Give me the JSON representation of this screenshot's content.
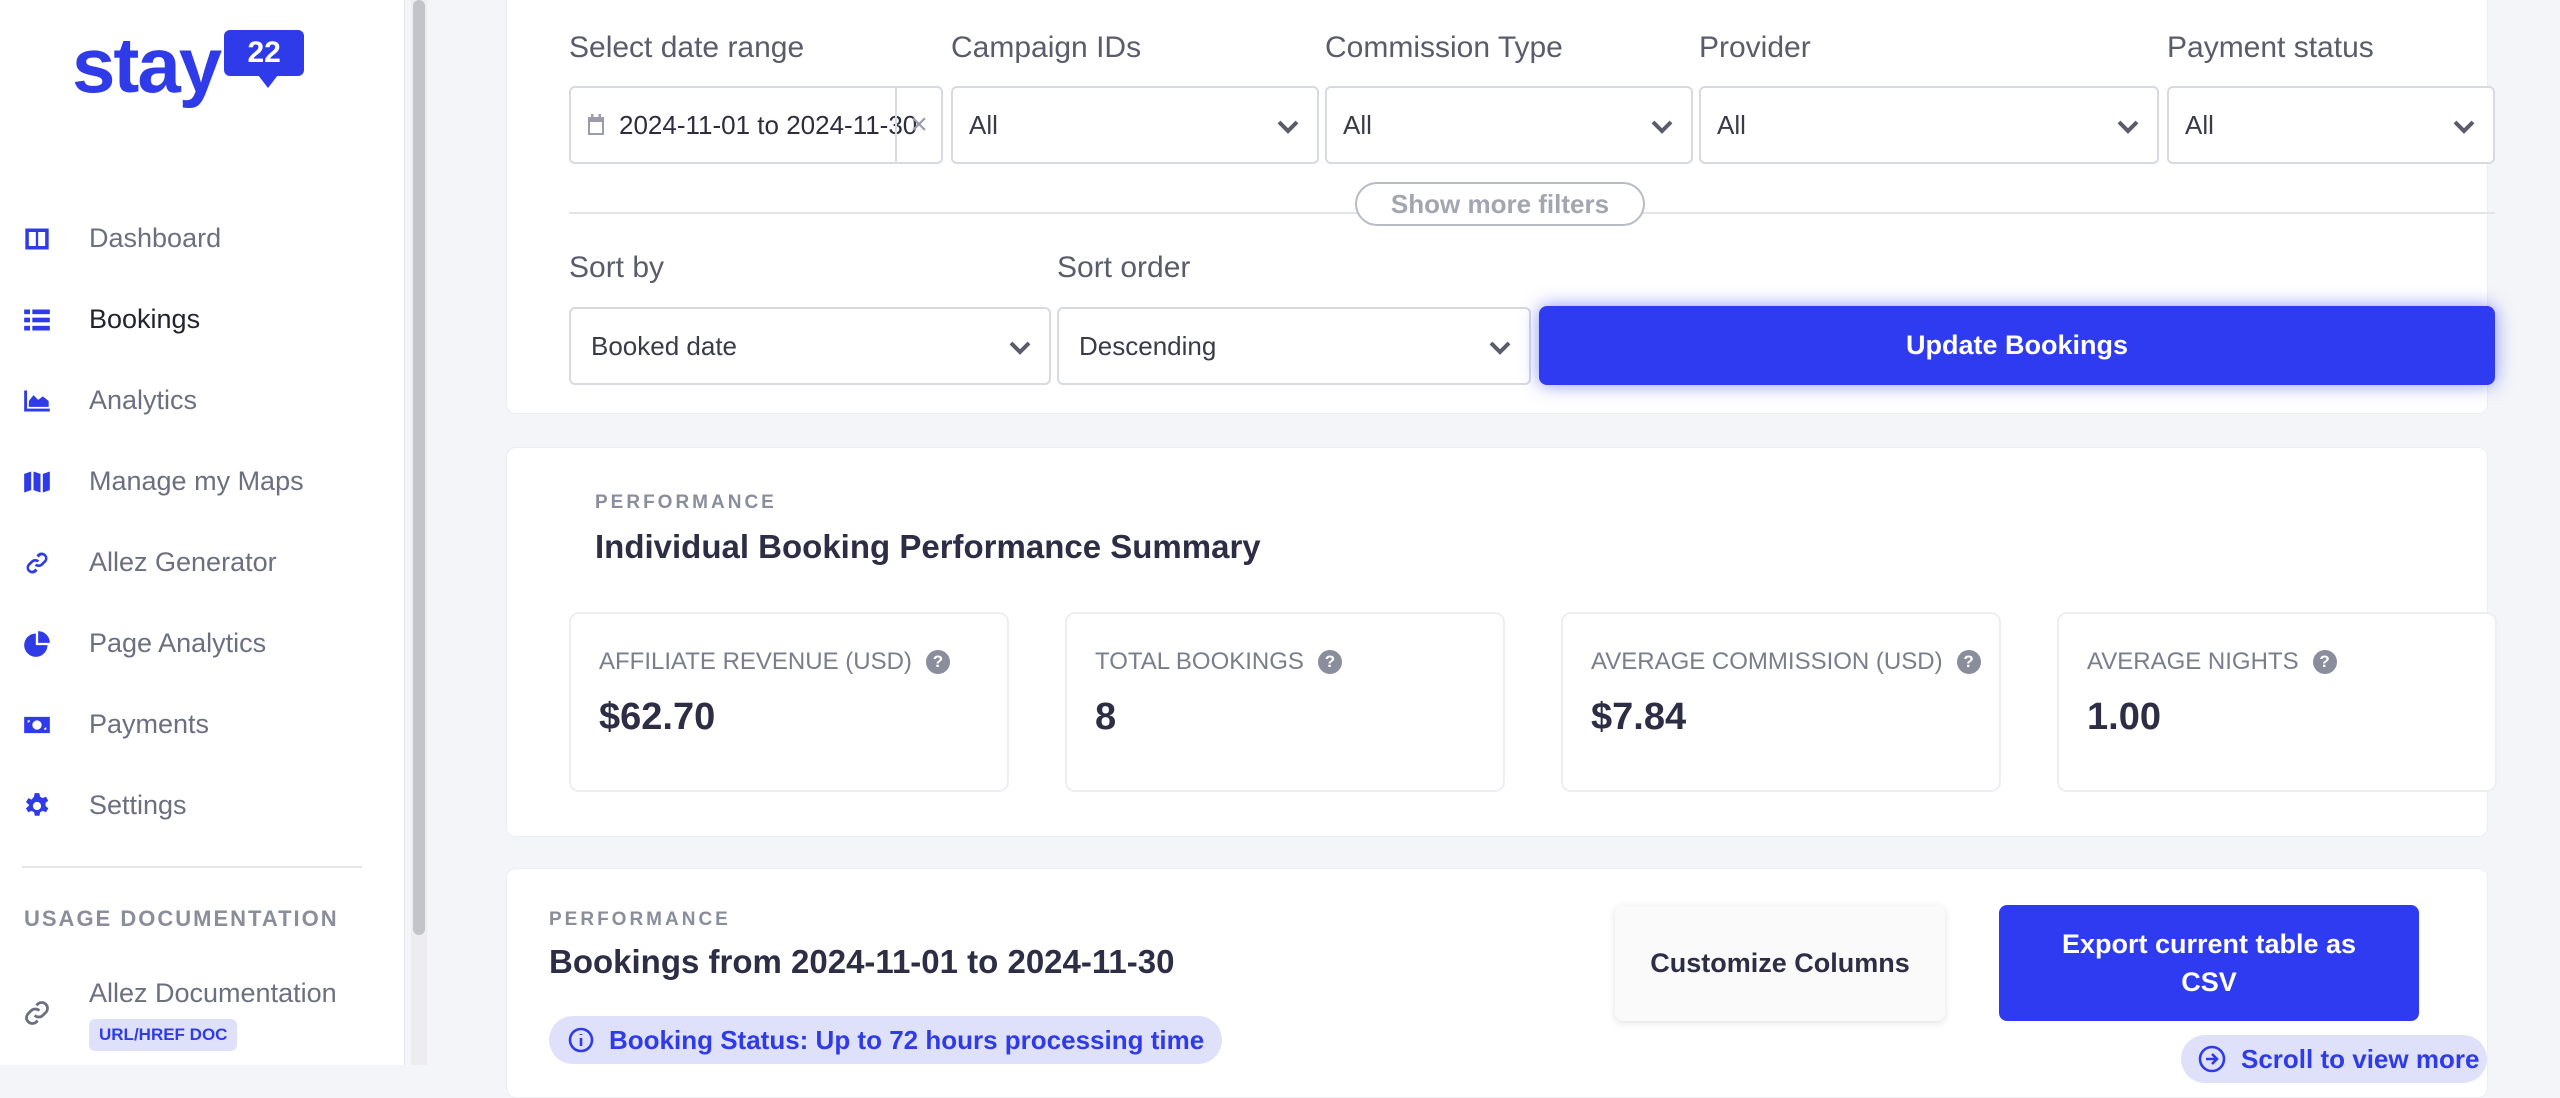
{
  "brand": {
    "logo_word": "stay",
    "logo_badge": "22",
    "accent": "#2f3be8"
  },
  "sidebar": {
    "items": [
      {
        "label": "Dashboard",
        "icon": "columns-icon"
      },
      {
        "label": "Bookings",
        "icon": "list-icon",
        "active": true
      },
      {
        "label": "Analytics",
        "icon": "area-chart-icon"
      },
      {
        "label": "Manage my Maps",
        "icon": "map-icon"
      },
      {
        "label": "Allez Generator",
        "icon": "link-icon"
      },
      {
        "label": "Page Analytics",
        "icon": "pie-chart-icon"
      },
      {
        "label": "Payments",
        "icon": "money-icon"
      },
      {
        "label": "Settings",
        "icon": "gear-icon"
      }
    ],
    "section_title": "USAGE DOCUMENTATION",
    "doc_item": {
      "label": "Allez Documentation",
      "badge": "URL/HREF DOC",
      "icon": "link-icon"
    }
  },
  "filters": {
    "date_range": {
      "label": "Select date range",
      "value": "2024-11-01 to 2024-11-30"
    },
    "campaign_ids": {
      "label": "Campaign IDs",
      "value": "All"
    },
    "commission_type": {
      "label": "Commission Type",
      "value": "All"
    },
    "provider": {
      "label": "Provider",
      "value": "All"
    },
    "payment_status": {
      "label": "Payment status",
      "value": "All"
    },
    "show_more": "Show more filters",
    "sort_by": {
      "label": "Sort by",
      "value": "Booked date"
    },
    "sort_order": {
      "label": "Sort order",
      "value": "Descending"
    },
    "update_button": "Update Bookings"
  },
  "performance": {
    "eyebrow": "PERFORMANCE",
    "title": "Individual Booking Performance Summary",
    "stats": [
      {
        "label": "AFFILIATE REVENUE (USD)",
        "value": "$62.70"
      },
      {
        "label": "TOTAL BOOKINGS",
        "value": "8"
      },
      {
        "label": "AVERAGE COMMISSION (USD)",
        "value": "$7.84"
      },
      {
        "label": "AVERAGE NIGHTS",
        "value": "1.00"
      }
    ],
    "help_glyph": "?"
  },
  "bookings": {
    "eyebrow": "PERFORMANCE",
    "title": "Bookings from 2024-11-01 to 2024-11-30",
    "customize_button": "Customize Columns",
    "export_button": "Export current table as CSV",
    "status_note": "Booking Status: Up to 72 hours processing time",
    "scroll_hint": "Scroll to view more"
  }
}
